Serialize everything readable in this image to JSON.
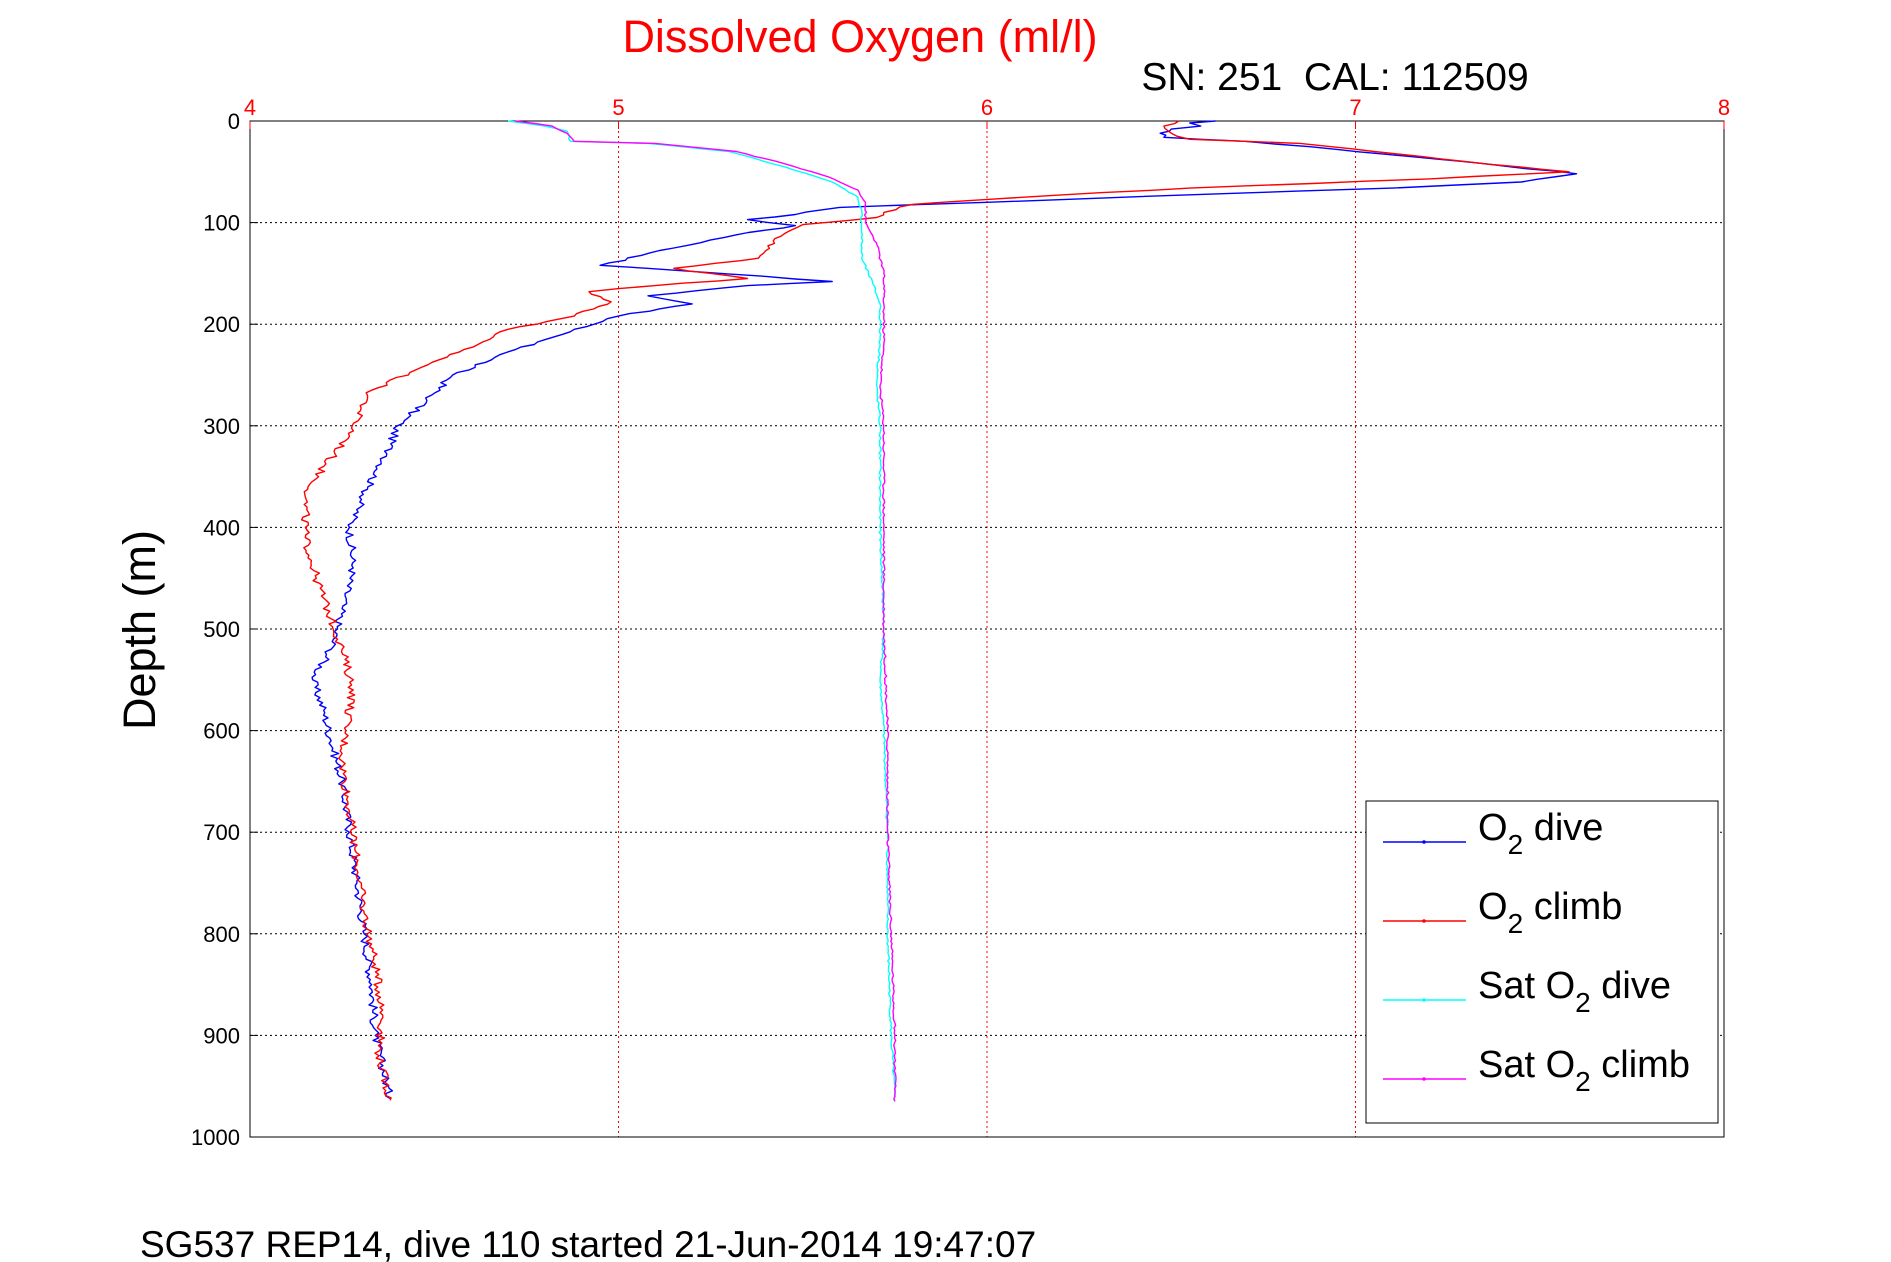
{
  "chart_data": {
    "type": "line",
    "title": "Dissolved Oxygen (ml/l)",
    "subtitle": "SN: 251  CAL: 112509",
    "footer": "SG537 REP14, dive 110 started 21-Jun-2014 19:47:07",
    "ylabel": "Depth (m)",
    "xlabel": "",
    "xlim": [
      4,
      8
    ],
    "ylim": [
      0,
      1000
    ],
    "y_reversed": true,
    "x_axis_position": "top",
    "xticks": [
      "4",
      "5",
      "6",
      "7",
      "8"
    ],
    "yticks": [
      "0",
      "100",
      "200",
      "300",
      "400",
      "500",
      "600",
      "700",
      "800",
      "900",
      "1000"
    ],
    "grid": true,
    "legend_position": "bottom-right",
    "colors": {
      "title": "#ff0000",
      "x_ticks": "#ff0000",
      "grid_x": "#ff0000",
      "grid_y": "#000000"
    },
    "series": [
      {
        "id": "o2-dive",
        "legend": {
          "pre": "O",
          "sub": "2",
          "post": " dive"
        },
        "color": "#0000ff",
        "points": [
          [
            6.62,
            0
          ],
          [
            6.55,
            2
          ],
          [
            6.58,
            5
          ],
          [
            6.5,
            8
          ],
          [
            6.47,
            12
          ],
          [
            6.48,
            16
          ],
          [
            6.7,
            20
          ],
          [
            6.95,
            28
          ],
          [
            7.15,
            35
          ],
          [
            7.35,
            42
          ],
          [
            7.6,
            52
          ],
          [
            7.45,
            60
          ],
          [
            7.1,
            66
          ],
          [
            6.6,
            72
          ],
          [
            6.0,
            80
          ],
          [
            5.6,
            85
          ],
          [
            5.48,
            92
          ],
          [
            5.35,
            97
          ],
          [
            5.48,
            103
          ],
          [
            5.32,
            112
          ],
          [
            5.15,
            125
          ],
          [
            4.95,
            142
          ],
          [
            5.2,
            148
          ],
          [
            5.58,
            158
          ],
          [
            5.35,
            162
          ],
          [
            5.08,
            172
          ],
          [
            5.2,
            180
          ],
          [
            5.0,
            192
          ],
          [
            4.88,
            205
          ],
          [
            4.72,
            225
          ],
          [
            4.55,
            250
          ],
          [
            4.48,
            275
          ],
          [
            4.4,
            300
          ],
          [
            4.37,
            330
          ],
          [
            4.32,
            360
          ],
          [
            4.27,
            400
          ],
          [
            4.28,
            440
          ],
          [
            4.25,
            480
          ],
          [
            4.22,
            520
          ],
          [
            4.17,
            550
          ],
          [
            4.2,
            580
          ],
          [
            4.22,
            610
          ],
          [
            4.25,
            650
          ],
          [
            4.27,
            700
          ],
          [
            4.29,
            750
          ],
          [
            4.31,
            800
          ],
          [
            4.33,
            850
          ],
          [
            4.34,
            900
          ],
          [
            4.38,
            962
          ]
        ]
      },
      {
        "id": "o2-climb",
        "legend": {
          "pre": "O",
          "sub": "2",
          "post": " climb"
        },
        "color": "#ff0000",
        "points": [
          [
            6.52,
            0
          ],
          [
            6.48,
            5
          ],
          [
            6.5,
            12
          ],
          [
            6.55,
            18
          ],
          [
            6.85,
            22
          ],
          [
            7.05,
            30
          ],
          [
            7.3,
            40
          ],
          [
            7.58,
            50
          ],
          [
            7.2,
            57
          ],
          [
            6.55,
            66
          ],
          [
            6.1,
            75
          ],
          [
            5.8,
            82
          ],
          [
            5.72,
            90
          ],
          [
            5.7,
            95
          ],
          [
            5.5,
            102
          ],
          [
            5.42,
            118
          ],
          [
            5.38,
            135
          ],
          [
            5.15,
            145
          ],
          [
            5.35,
            155
          ],
          [
            5.1,
            162
          ],
          [
            4.92,
            168
          ],
          [
            4.98,
            178
          ],
          [
            4.88,
            192
          ],
          [
            4.7,
            205
          ],
          [
            4.58,
            225
          ],
          [
            4.45,
            245
          ],
          [
            4.33,
            265
          ],
          [
            4.3,
            285
          ],
          [
            4.27,
            310
          ],
          [
            4.2,
            340
          ],
          [
            4.15,
            370
          ],
          [
            4.15,
            410
          ],
          [
            4.18,
            450
          ],
          [
            4.22,
            490
          ],
          [
            4.25,
            520
          ],
          [
            4.28,
            560
          ],
          [
            4.26,
            600
          ],
          [
            4.25,
            630
          ],
          [
            4.27,
            680
          ],
          [
            4.29,
            730
          ],
          [
            4.31,
            780
          ],
          [
            4.34,
            830
          ],
          [
            4.36,
            880
          ],
          [
            4.35,
            920
          ],
          [
            4.38,
            964
          ]
        ]
      },
      {
        "id": "sat-o2-dive",
        "legend": {
          "pre": "Sat O",
          "sub": "2",
          "post": " dive"
        },
        "color": "#00ffff",
        "points": [
          [
            4.7,
            0
          ],
          [
            4.8,
            5
          ],
          [
            4.86,
            10
          ],
          [
            4.87,
            20
          ],
          [
            5.08,
            22
          ],
          [
            5.3,
            30
          ],
          [
            5.45,
            45
          ],
          [
            5.58,
            60
          ],
          [
            5.65,
            75
          ],
          [
            5.66,
            90
          ],
          [
            5.66,
            110
          ],
          [
            5.66,
            135
          ],
          [
            5.69,
            160
          ],
          [
            5.71,
            180
          ],
          [
            5.71,
            220
          ],
          [
            5.7,
            260
          ],
          [
            5.71,
            300
          ],
          [
            5.71,
            400
          ],
          [
            5.72,
            500
          ],
          [
            5.71,
            550
          ],
          [
            5.72,
            600
          ],
          [
            5.73,
            700
          ],
          [
            5.73,
            800
          ],
          [
            5.74,
            900
          ],
          [
            5.75,
            965
          ]
        ]
      },
      {
        "id": "sat-o2-climb",
        "legend": {
          "pre": "Sat O",
          "sub": "2",
          "post": " climb"
        },
        "color": "#ff00ff",
        "points": [
          [
            4.72,
            0
          ],
          [
            4.82,
            5
          ],
          [
            4.86,
            12
          ],
          [
            4.88,
            20
          ],
          [
            5.1,
            22
          ],
          [
            5.32,
            30
          ],
          [
            5.45,
            42
          ],
          [
            5.57,
            55
          ],
          [
            5.65,
            68
          ],
          [
            5.67,
            80
          ],
          [
            5.67,
            100
          ],
          [
            5.7,
            120
          ],
          [
            5.72,
            150
          ],
          [
            5.72,
            180
          ],
          [
            5.72,
            220
          ],
          [
            5.71,
            260
          ],
          [
            5.72,
            300
          ],
          [
            5.72,
            400
          ],
          [
            5.72,
            500
          ],
          [
            5.73,
            600
          ],
          [
            5.73,
            700
          ],
          [
            5.74,
            800
          ],
          [
            5.75,
            900
          ],
          [
            5.75,
            965
          ]
        ]
      }
    ]
  }
}
